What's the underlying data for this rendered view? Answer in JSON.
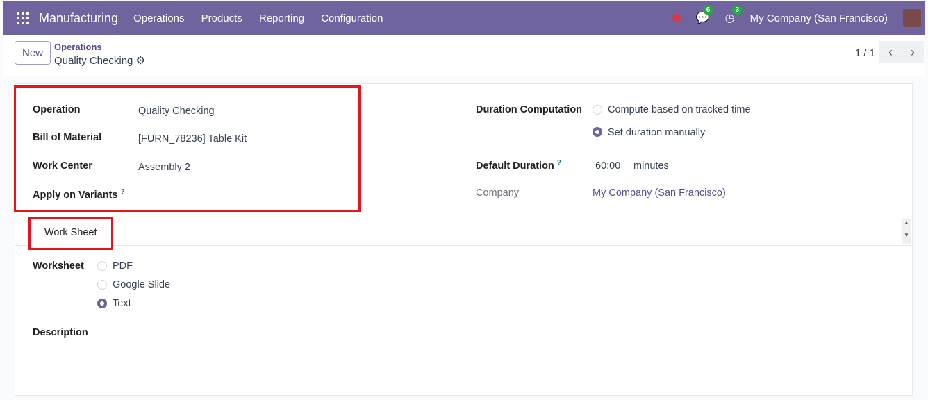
{
  "nav": {
    "app": "Manufacturing",
    "menu": [
      "Operations",
      "Products",
      "Reporting",
      "Configuration"
    ],
    "messages_count": "6",
    "activities_count": "3",
    "company": "My Company (San Francisco)"
  },
  "control": {
    "new_label": "New",
    "breadcrumb_parent": "Operations",
    "breadcrumb_current": "Quality Checking",
    "pager": "1 / 1"
  },
  "form": {
    "operation_label": "Operation",
    "operation": "Quality Checking",
    "bom_label": "Bill of Material",
    "bom": "[FURN_78236] Table Kit",
    "workcenter_label": "Work Center",
    "workcenter": "Assembly 2",
    "variants_label": "Apply on Variants",
    "help": "?",
    "duration_label": "Duration Computation",
    "duration_options": [
      "Compute based on tracked time",
      "Set duration manually"
    ],
    "default_duration_label": "Default Duration",
    "default_duration": "60:00",
    "duration_unit": "minutes",
    "company_label": "Company",
    "company": "My Company (San Francisco)"
  },
  "tabs": [
    "Work Sheet"
  ],
  "worksheet": {
    "label": "Worksheet",
    "options": [
      "PDF",
      "Google Slide",
      "Text"
    ],
    "selected": "Text",
    "description_label": "Description"
  },
  "colors": {
    "brand": "#71639e",
    "highlight": "#e3151e"
  }
}
